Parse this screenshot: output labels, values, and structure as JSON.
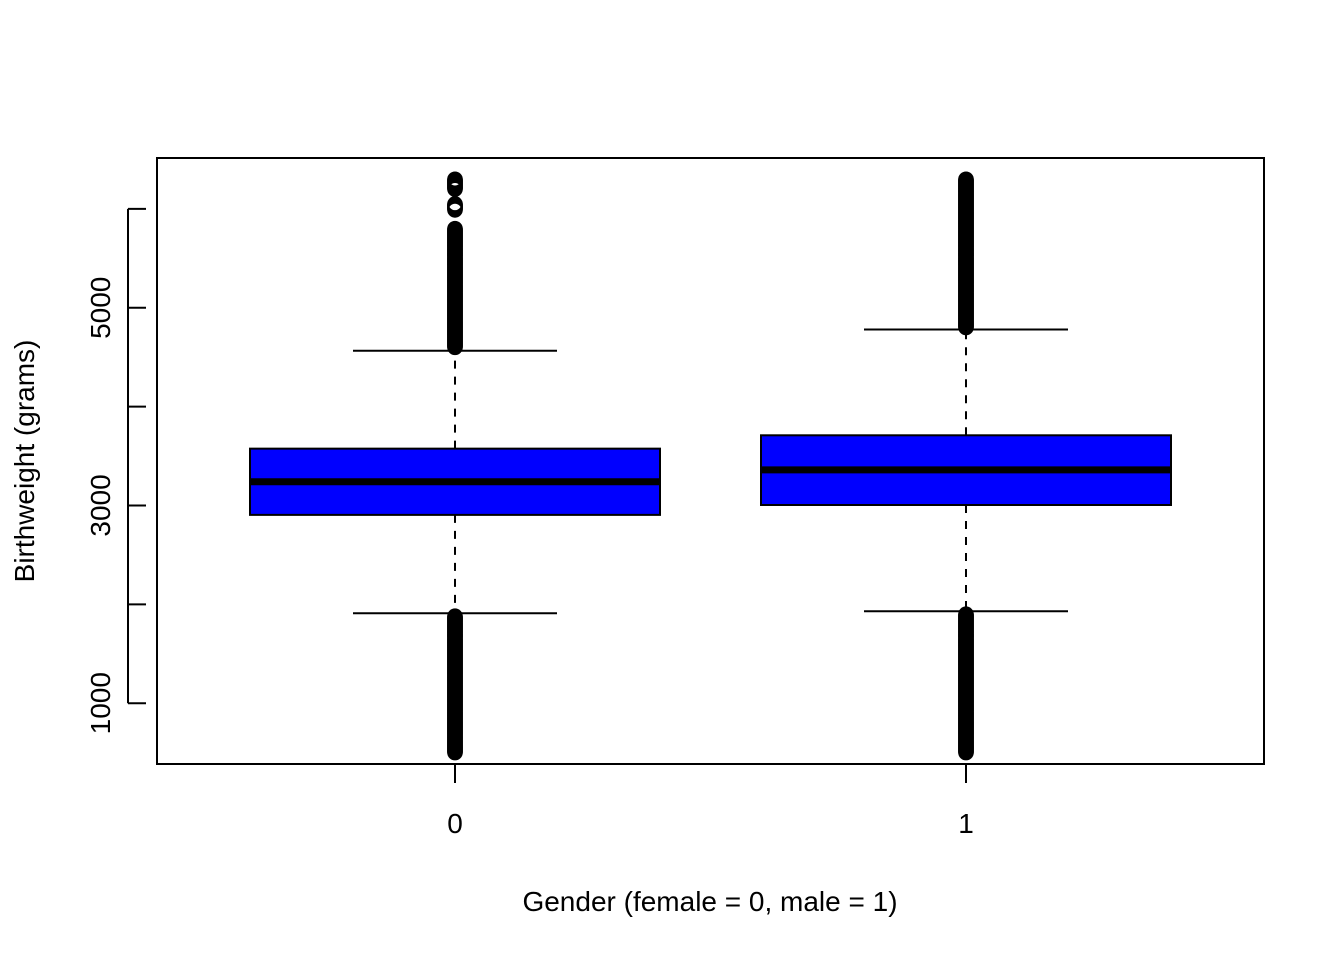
{
  "chart_data": {
    "type": "boxplot",
    "title": "",
    "xlabel": "Gender (female = 0, male = 1)",
    "ylabel": "Birthweight (grams)",
    "ylim": [
      385,
      6515
    ],
    "yticks": [
      1000,
      2000,
      3000,
      4000,
      5000,
      6000
    ],
    "ytick_labels": [
      "1000",
      "",
      "3000",
      "",
      "5000",
      ""
    ],
    "categories": [
      "0",
      "1"
    ],
    "box_color": "#0000ff",
    "series": [
      {
        "category": "0",
        "whisker_low": 1910,
        "q1": 2905,
        "median": 3240,
        "q3": 3575,
        "whisker_high": 4565,
        "outliers_low": [
          500,
          560,
          620,
          700,
          800,
          900,
          1000,
          1100,
          1200,
          1300,
          1400,
          1500,
          1600,
          1700,
          1800,
          1880
        ],
        "outliers_high": [
          4600,
          4700,
          4800,
          4900,
          5000,
          5100,
          5200,
          5300,
          5400,
          5500,
          5600,
          5700,
          5800,
          5990,
          6050,
          6200,
          6300
        ]
      },
      {
        "category": "1",
        "whisker_low": 1930,
        "q1": 3005,
        "median": 3360,
        "q3": 3710,
        "whisker_high": 4780,
        "outliers_low": [
          500,
          560,
          620,
          700,
          800,
          900,
          1000,
          1100,
          1200,
          1300,
          1400,
          1500,
          1600,
          1700,
          1800,
          1900
        ],
        "outliers_high": [
          4800,
          4900,
          5000,
          5100,
          5200,
          5300,
          5400,
          5500,
          5600,
          5700,
          5800,
          5900,
          6000,
          6100,
          6200,
          6300
        ]
      }
    ]
  }
}
